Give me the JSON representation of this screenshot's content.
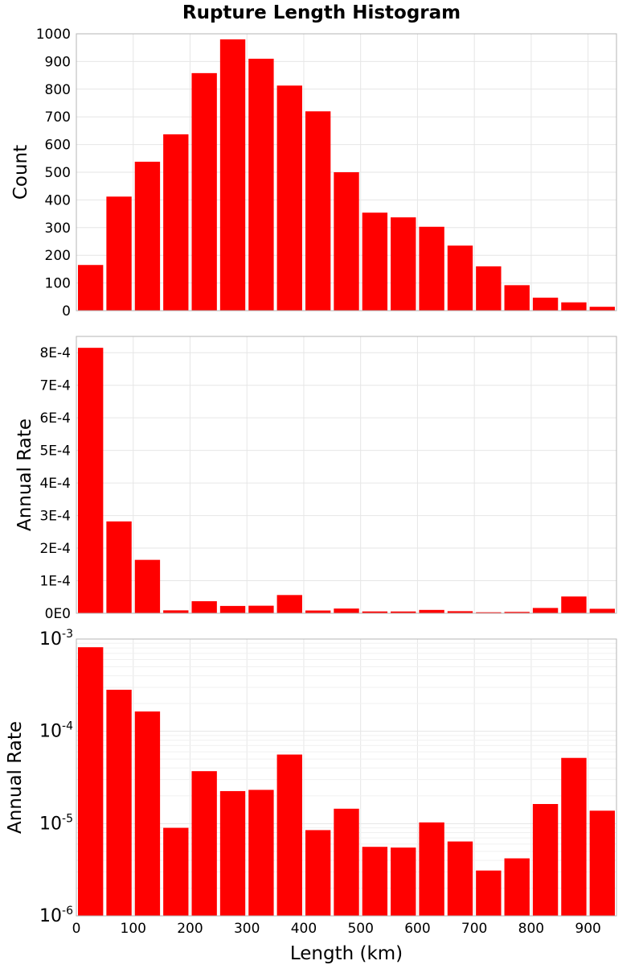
{
  "title": "Rupture Length Histogram",
  "colors": {
    "bar": "#ff0000",
    "frame": "#b5b5b5",
    "grid": "#e6e6e6"
  },
  "chart_data": [
    {
      "type": "bar",
      "panel": "count",
      "x": [
        25,
        75,
        125,
        175,
        225,
        275,
        325,
        375,
        425,
        475,
        525,
        575,
        625,
        675,
        725,
        775,
        825,
        875,
        925
      ],
      "bin_width": 50,
      "values": [
        165,
        412,
        538,
        637,
        858,
        980,
        910,
        813,
        720,
        500,
        354,
        337,
        303,
        235,
        160,
        92,
        47,
        30,
        14
      ],
      "ylabel": "Count",
      "xlim": [
        0,
        950
      ],
      "ylim": [
        0,
        1000
      ],
      "yticks": [
        0,
        100,
        200,
        300,
        400,
        500,
        600,
        700,
        800,
        900,
        1000
      ],
      "ytick_labels": [
        "0",
        "100",
        "200",
        "300",
        "400",
        "500",
        "600",
        "700",
        "800",
        "900",
        "1000"
      ],
      "grid": true
    },
    {
      "type": "bar",
      "panel": "rate-linear",
      "x": [
        25,
        75,
        125,
        175,
        225,
        275,
        325,
        375,
        425,
        475,
        525,
        575,
        625,
        675,
        725,
        775,
        825,
        875,
        925
      ],
      "bin_width": 50,
      "values": [
        0.000815,
        0.000282,
        0.000164,
        9e-06,
        3.7e-05,
        2.25e-05,
        2.32e-05,
        5.6e-05,
        8.5e-06,
        1.45e-05,
        5.6e-06,
        5.5e-06,
        1.03e-05,
        6.4e-06,
        3.1e-06,
        4.2e-06,
        1.63e-05,
        5.15e-05,
        1.38e-05
      ],
      "ylabel": "Annual Rate",
      "xlim": [
        0,
        950
      ],
      "ylim": [
        0,
        0.00085
      ],
      "yticks": [
        0,
        0.0001,
        0.0002,
        0.0003,
        0.0004,
        0.0005,
        0.0006,
        0.0007,
        0.0008
      ],
      "ytick_labels": [
        "0E0",
        "1E-4",
        "2E-4",
        "3E-4",
        "4E-4",
        "5E-4",
        "6E-4",
        "7E-4",
        "8E-4"
      ],
      "grid": true
    },
    {
      "type": "bar",
      "panel": "rate-log",
      "x": [
        25,
        75,
        125,
        175,
        225,
        275,
        325,
        375,
        425,
        475,
        525,
        575,
        625,
        675,
        725,
        775,
        825,
        875,
        925
      ],
      "bin_width": 50,
      "values": [
        0.000815,
        0.000282,
        0.000164,
        9e-06,
        3.7e-05,
        2.25e-05,
        2.32e-05,
        5.6e-05,
        8.5e-06,
        1.45e-05,
        5.6e-06,
        5.5e-06,
        1.03e-05,
        6.4e-06,
        3.1e-06,
        4.2e-06,
        1.63e-05,
        5.15e-05,
        1.38e-05
      ],
      "ylabel": "Annual Rate",
      "xlabel": "Length (km)",
      "yscale": "log",
      "xlim": [
        0,
        950
      ],
      "ylim": [
        1e-06,
        0.001
      ],
      "ytick_labels": [
        {
          "base": "10",
          "exp": "-6"
        },
        {
          "base": "10",
          "exp": "-5"
        },
        {
          "base": "10",
          "exp": "-4"
        },
        {
          "base": "10",
          "exp": "-3"
        }
      ],
      "xticks": [
        0,
        100,
        200,
        300,
        400,
        500,
        600,
        700,
        800,
        900
      ],
      "xtick_labels": [
        "0",
        "100",
        "200",
        "300",
        "400",
        "500",
        "600",
        "700",
        "800",
        "900"
      ],
      "grid": true
    }
  ]
}
